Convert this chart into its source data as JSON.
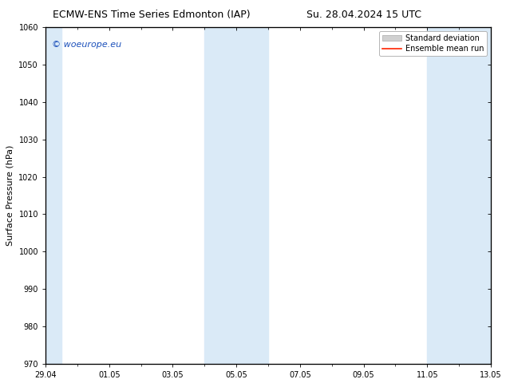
{
  "title_left": "ECMW-ENS Time Series Edmonton (IAP)",
  "title_right": "Su. 28.04.2024 15 UTC",
  "ylabel": "Surface Pressure (hPa)",
  "ylim": [
    970,
    1060
  ],
  "yticks": [
    970,
    980,
    990,
    1000,
    1010,
    1020,
    1030,
    1040,
    1050,
    1060
  ],
  "x_start_num": 0.0,
  "x_end_num": 14.0,
  "xtick_positions": [
    0,
    2,
    4,
    6,
    8,
    10,
    12,
    14
  ],
  "xtick_labels": [
    "29.04",
    "01.05",
    "03.05",
    "05.05",
    "07.05",
    "09.05",
    "11.05",
    "13.05"
  ],
  "shaded_bands": [
    {
      "x_start": 5,
      "x_end": 7
    },
    {
      "x_start": 12,
      "x_end": 14
    }
  ],
  "left_band": {
    "x_start": -0.15,
    "x_end": 0.5
  },
  "shaded_color": "#daeaf7",
  "background_color": "#ffffff",
  "border_color": "#000000",
  "watermark_text": "© woeurope.eu",
  "watermark_color": "#1a4fba",
  "legend_std_label": "Standard deviation",
  "legend_mean_label": "Ensemble mean run",
  "legend_std_color": "#d0d0d0",
  "legend_mean_color": "#ff2200",
  "title_fontsize": 9,
  "tick_fontsize": 7,
  "ylabel_fontsize": 8,
  "watermark_fontsize": 8,
  "legend_fontsize": 7
}
